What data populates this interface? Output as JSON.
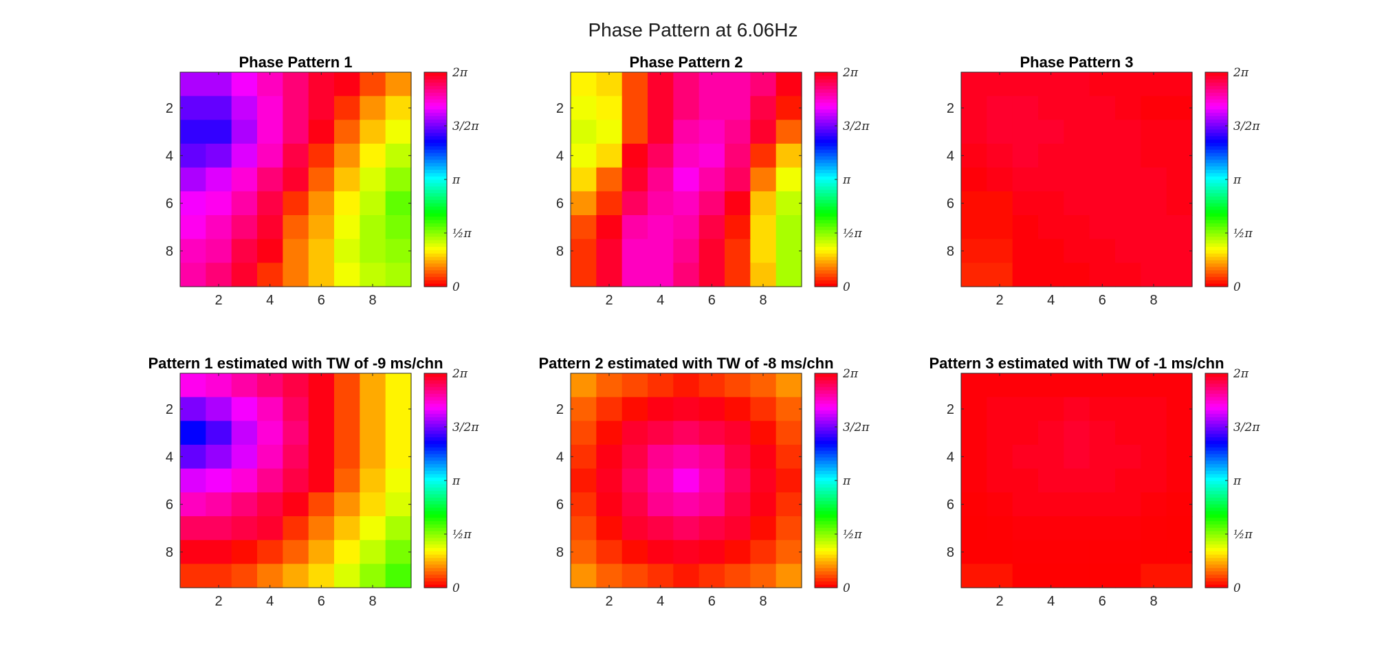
{
  "figure": {
    "title": "Phase Pattern at 6.06Hz"
  },
  "chart_data": [
    {
      "type": "heatmap",
      "title": "Phase Pattern 1",
      "xticks": [
        "2",
        "4",
        "6",
        "8"
      ],
      "yticks": [
        "2",
        "4",
        "6",
        "8"
      ],
      "colorbar": {
        "ticks": [
          "0",
          "½π",
          "π",
          "3/2π",
          "2π"
        ],
        "range": [
          0,
          6.2832
        ],
        "colormap": "hsv"
      },
      "z": [
        [
          4.9,
          4.9,
          5.2,
          5.5,
          5.8,
          6.1,
          6.2,
          0.3,
          0.6
        ],
        [
          4.6,
          4.6,
          5.0,
          5.4,
          5.8,
          6.1,
          0.2,
          0.6,
          0.9
        ],
        [
          4.4,
          4.4,
          4.9,
          5.4,
          5.8,
          6.2,
          0.4,
          0.8,
          1.1
        ],
        [
          4.6,
          4.7,
          5.1,
          5.5,
          6.0,
          0.2,
          0.6,
          1.0,
          1.3
        ],
        [
          4.9,
          5.1,
          5.4,
          5.8,
          6.1,
          0.4,
          0.8,
          1.2,
          1.5
        ],
        [
          5.2,
          5.3,
          5.6,
          6.0,
          0.2,
          0.6,
          1.0,
          1.3,
          1.7
        ],
        [
          5.3,
          5.5,
          5.8,
          6.1,
          0.4,
          0.7,
          1.1,
          1.4,
          1.6
        ],
        [
          5.5,
          5.6,
          6.0,
          6.2,
          0.5,
          0.8,
          1.2,
          1.4,
          1.5
        ],
        [
          5.6,
          5.8,
          6.1,
          0.2,
          0.5,
          0.8,
          1.1,
          1.3,
          1.4
        ]
      ]
    },
    {
      "type": "heatmap",
      "title": "Phase Pattern 2",
      "xticks": [
        "2",
        "4",
        "6",
        "8"
      ],
      "yticks": [
        "2",
        "4",
        "6",
        "8"
      ],
      "colorbar": {
        "ticks": [
          "0",
          "½π",
          "π",
          "3/2π",
          "2π"
        ],
        "range": [
          0,
          6.2832
        ],
        "colormap": "hsv"
      },
      "z": [
        [
          1.0,
          0.9,
          0.3,
          6.1,
          5.8,
          5.6,
          5.6,
          5.8,
          6.2
        ],
        [
          1.1,
          1.0,
          0.3,
          6.1,
          5.8,
          5.6,
          5.6,
          6.0,
          0.1
        ],
        [
          1.2,
          1.1,
          0.3,
          6.1,
          5.6,
          5.5,
          5.7,
          6.1,
          0.4
        ],
        [
          1.1,
          0.9,
          6.2,
          5.9,
          5.5,
          5.4,
          5.8,
          0.2,
          0.8
        ],
        [
          0.9,
          0.4,
          6.1,
          5.7,
          5.3,
          5.6,
          5.9,
          0.5,
          1.1
        ],
        [
          0.6,
          0.2,
          5.9,
          5.6,
          5.5,
          5.8,
          6.2,
          0.8,
          1.3
        ],
        [
          0.3,
          6.2,
          5.6,
          5.5,
          5.6,
          6.0,
          0.1,
          0.9,
          1.4
        ],
        [
          0.2,
          6.1,
          5.5,
          5.5,
          5.7,
          6.1,
          0.2,
          0.9,
          1.4
        ],
        [
          0.2,
          6.1,
          5.5,
          5.5,
          5.8,
          6.1,
          0.2,
          0.8,
          1.4
        ]
      ]
    },
    {
      "type": "heatmap",
      "title": "Phase Pattern 3",
      "xticks": [
        "2",
        "4",
        "6",
        "8"
      ],
      "yticks": [
        "2",
        "4",
        "6",
        "8"
      ],
      "colorbar": {
        "ticks": [
          "0",
          "½π",
          "π",
          "3/2π",
          "2π"
        ],
        "range": [
          0,
          6.2832
        ],
        "colormap": "hsv"
      },
      "z": [
        [
          6.15,
          6.15,
          6.15,
          6.15,
          6.15,
          6.2,
          6.2,
          6.2,
          6.2
        ],
        [
          6.15,
          6.1,
          6.1,
          6.15,
          6.15,
          6.15,
          6.2,
          6.25,
          6.25
        ],
        [
          6.15,
          6.1,
          6.1,
          6.1,
          6.15,
          6.15,
          6.15,
          6.2,
          6.2
        ],
        [
          6.2,
          6.15,
          6.1,
          6.15,
          6.15,
          6.15,
          6.15,
          6.2,
          6.2
        ],
        [
          6.25,
          6.2,
          6.15,
          6.15,
          6.15,
          6.15,
          6.15,
          6.15,
          6.2
        ],
        [
          0.05,
          0.05,
          6.2,
          6.2,
          6.15,
          6.15,
          6.15,
          6.15,
          6.2
        ],
        [
          0.05,
          0.05,
          6.25,
          6.2,
          6.2,
          6.15,
          6.15,
          6.15,
          6.15
        ],
        [
          0.1,
          0.1,
          6.25,
          6.25,
          6.2,
          6.2,
          6.15,
          6.15,
          6.15
        ],
        [
          0.15,
          0.15,
          6.25,
          6.25,
          6.25,
          6.2,
          6.2,
          6.15,
          6.15
        ]
      ]
    },
    {
      "type": "heatmap",
      "title": "Pattern 1 estimated with TW of -9 ms/chn",
      "xticks": [
        "2",
        "4",
        "6",
        "8"
      ],
      "yticks": [
        "2",
        "4",
        "6",
        "8"
      ],
      "colorbar": {
        "ticks": [
          "0",
          "½π",
          "π",
          "3/2π",
          "2π"
        ],
        "range": [
          0,
          6.2832
        ],
        "colormap": "hsv"
      },
      "z": [
        [
          5.3,
          5.4,
          5.6,
          5.8,
          6.0,
          6.2,
          0.3,
          0.7,
          1.0
        ],
        [
          4.7,
          4.9,
          5.2,
          5.5,
          5.9,
          6.2,
          0.3,
          0.7,
          1.0
        ],
        [
          4.2,
          4.5,
          5.0,
          5.4,
          5.8,
          6.2,
          0.3,
          0.7,
          1.0
        ],
        [
          4.6,
          4.8,
          5.1,
          5.5,
          5.9,
          6.2,
          0.3,
          0.7,
          1.0
        ],
        [
          5.1,
          5.2,
          5.4,
          5.7,
          6.0,
          6.2,
          0.4,
          0.8,
          1.1
        ],
        [
          5.5,
          5.6,
          5.8,
          6.0,
          6.2,
          0.3,
          0.6,
          0.9,
          1.2
        ],
        [
          5.9,
          5.9,
          6.0,
          6.1,
          0.2,
          0.5,
          0.8,
          1.1,
          1.4
        ],
        [
          6.2,
          6.2,
          0.05,
          0.2,
          0.4,
          0.7,
          1.0,
          1.3,
          1.6
        ],
        [
          0.2,
          0.2,
          0.3,
          0.5,
          0.7,
          0.9,
          1.2,
          1.5,
          1.8
        ]
      ]
    },
    {
      "type": "heatmap",
      "title": "Pattern 2 estimated with TW of -8 ms/chn",
      "xticks": [
        "2",
        "4",
        "6",
        "8"
      ],
      "yticks": [
        "2",
        "4",
        "6",
        "8"
      ],
      "colorbar": {
        "ticks": [
          "0",
          "½π",
          "π",
          "3/2π",
          "2π"
        ],
        "range": [
          0,
          6.2832
        ],
        "colormap": "hsv"
      },
      "z": [
        [
          0.6,
          0.4,
          0.3,
          0.2,
          0.1,
          0.2,
          0.3,
          0.4,
          0.6
        ],
        [
          0.4,
          0.2,
          0.05,
          6.2,
          6.15,
          6.2,
          0.05,
          0.2,
          0.4
        ],
        [
          0.3,
          0.05,
          6.1,
          6.0,
          5.9,
          6.0,
          6.1,
          0.05,
          0.3
        ],
        [
          0.2,
          6.2,
          6.0,
          5.7,
          5.6,
          5.7,
          6.0,
          6.2,
          0.2
        ],
        [
          0.1,
          6.15,
          5.9,
          5.6,
          5.3,
          5.6,
          5.9,
          6.15,
          0.1
        ],
        [
          0.2,
          6.2,
          6.0,
          5.7,
          5.6,
          5.7,
          6.0,
          6.2,
          0.2
        ],
        [
          0.3,
          0.05,
          6.1,
          6.0,
          5.9,
          6.0,
          6.1,
          0.05,
          0.3
        ],
        [
          0.4,
          0.2,
          0.05,
          6.2,
          6.15,
          6.2,
          0.05,
          0.2,
          0.4
        ],
        [
          0.6,
          0.4,
          0.3,
          0.2,
          0.1,
          0.2,
          0.3,
          0.4,
          0.6
        ]
      ]
    },
    {
      "type": "heatmap",
      "title": "Pattern 3 estimated with TW of -1 ms/chn",
      "xticks": [
        "2",
        "4",
        "6",
        "8"
      ],
      "yticks": [
        "2",
        "4",
        "6",
        "8"
      ],
      "colorbar": {
        "ticks": [
          "0",
          "½π",
          "π",
          "3/2π",
          "2π"
        ],
        "range": [
          0,
          6.2832
        ],
        "colormap": "hsv"
      },
      "z": [
        [
          6.25,
          6.25,
          6.25,
          6.25,
          6.25,
          6.25,
          6.25,
          6.25,
          6.25
        ],
        [
          6.25,
          6.2,
          6.2,
          6.2,
          6.15,
          6.2,
          6.2,
          6.2,
          6.25
        ],
        [
          6.25,
          6.2,
          6.2,
          6.15,
          6.1,
          6.15,
          6.2,
          6.2,
          6.25
        ],
        [
          6.25,
          6.2,
          6.15,
          6.15,
          6.1,
          6.15,
          6.15,
          6.2,
          6.25
        ],
        [
          6.25,
          6.2,
          6.2,
          6.15,
          6.15,
          6.15,
          6.2,
          6.2,
          6.25
        ],
        [
          6.27,
          6.25,
          6.2,
          6.2,
          6.2,
          6.2,
          6.2,
          6.25,
          6.27
        ],
        [
          6.28,
          6.27,
          6.25,
          6.25,
          6.25,
          6.25,
          6.25,
          6.27,
          6.28
        ],
        [
          6.28,
          6.28,
          6.27,
          6.27,
          6.27,
          6.27,
          6.27,
          6.28,
          6.28
        ],
        [
          0.08,
          0.08,
          6.28,
          6.28,
          6.28,
          6.28,
          6.28,
          0.08,
          0.08
        ]
      ]
    }
  ]
}
